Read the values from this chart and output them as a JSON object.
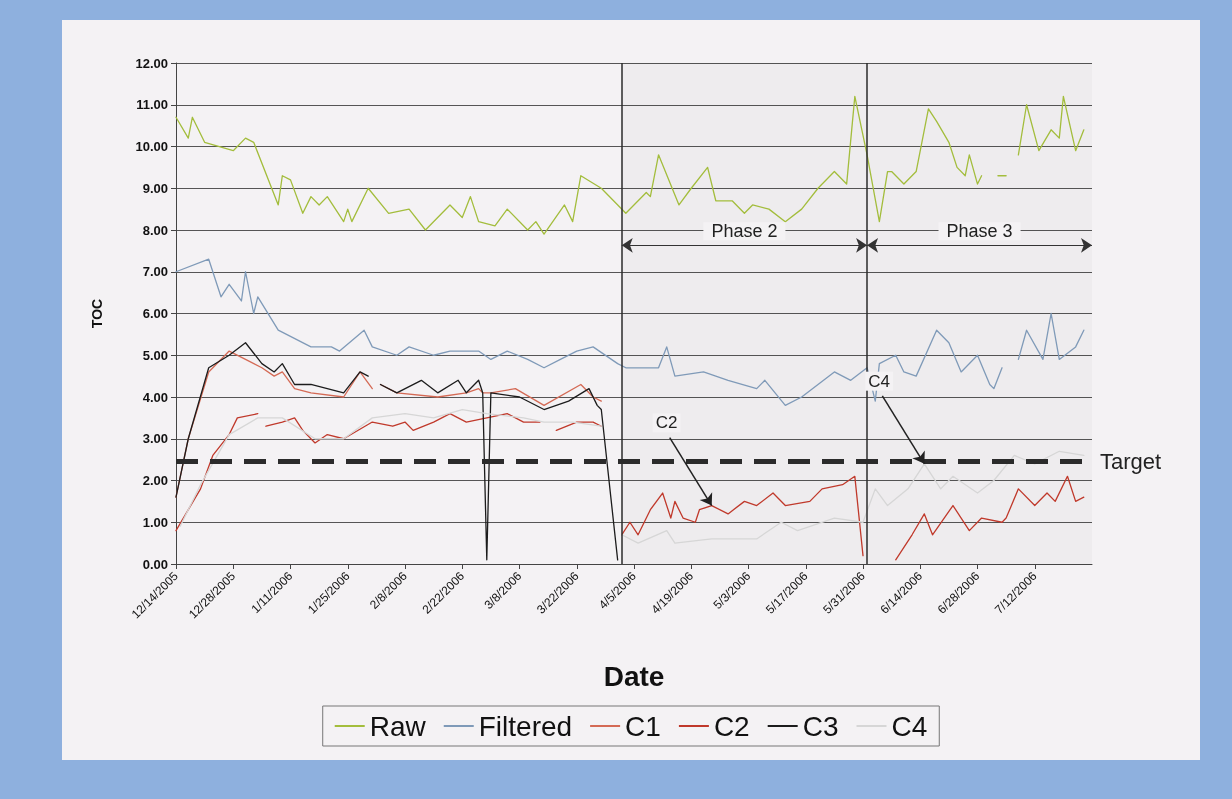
{
  "chart_data": {
    "type": "line",
    "xlabel": "Date",
    "ylabel": "TOC",
    "xlim": [
      "2005-12-14",
      "2006-07-26"
    ],
    "xticks": [
      {
        "value": "2005-12-14",
        "label": "12/14/2005"
      },
      {
        "value": "2005-12-28",
        "label": "12/28/2005"
      },
      {
        "value": "2006-01-11",
        "label": "1/11/2006"
      },
      {
        "value": "2006-01-25",
        "label": "1/25/2006"
      },
      {
        "value": "2006-02-08",
        "label": "2/8/2006"
      },
      {
        "value": "2006-02-22",
        "label": "2/22/2006"
      },
      {
        "value": "2006-03-08",
        "label": "3/8/2006"
      },
      {
        "value": "2006-03-22",
        "label": "3/22/2006"
      },
      {
        "value": "2006-04-05",
        "label": "4/5/2006"
      },
      {
        "value": "2006-04-19",
        "label": "4/19/2006"
      },
      {
        "value": "2006-05-03",
        "label": "5/3/2006"
      },
      {
        "value": "2006-05-17",
        "label": "5/17/2006"
      },
      {
        "value": "2006-05-31",
        "label": "5/31/2006"
      },
      {
        "value": "2006-06-14",
        "label": "6/14/2006"
      },
      {
        "value": "2006-06-28",
        "label": "6/28/2006"
      },
      {
        "value": "2006-07-12",
        "label": "7/12/2006"
      }
    ],
    "ylim": [
      0,
      12
    ],
    "yticks": [
      {
        "value": 0,
        "label": "0.00"
      },
      {
        "value": 1,
        "label": "1.00"
      },
      {
        "value": 2,
        "label": "2.00"
      },
      {
        "value": 3,
        "label": "3.00"
      },
      {
        "value": 4,
        "label": "4.00"
      },
      {
        "value": 5,
        "label": "5.00"
      },
      {
        "value": 6,
        "label": "6.00"
      },
      {
        "value": 7,
        "label": "7.00"
      },
      {
        "value": 8,
        "label": "8.00"
      },
      {
        "value": 9,
        "label": "9.00"
      },
      {
        "value": 10,
        "label": "10.00"
      },
      {
        "value": 11,
        "label": "11.00"
      },
      {
        "value": 12,
        "label": "12.00"
      }
    ],
    "grid": "y",
    "legend": "bottom",
    "series": [
      {
        "name": "Raw",
        "color": "#a3bd3c",
        "x": [
          "2005-12-14",
          "2005-12-17",
          "2005-12-18",
          "2005-12-21",
          "2005-12-28",
          "2005-12-31",
          "2006-01-02",
          "2006-01-08",
          "2006-01-09",
          "2006-01-11",
          "2006-01-14",
          "2006-01-16",
          "2006-01-18",
          "2006-01-20",
          "2006-01-24",
          "2006-01-25",
          "2006-01-26",
          "2006-01-30",
          "2006-02-04",
          "2006-02-09",
          "2006-02-13",
          "2006-02-19",
          "2006-02-22",
          "2006-02-24",
          "2006-02-26",
          "2006-03-02",
          "2006-03-05",
          "2006-03-10",
          "2006-03-12",
          "2006-03-14",
          "2006-03-19",
          "2006-03-21",
          "2006-03-23",
          "2006-03-28",
          "2006-04-03",
          "2006-04-08",
          "2006-04-09",
          "2006-04-11",
          "2006-04-16",
          "2006-04-19",
          "2006-04-23",
          "2006-04-25",
          "2006-04-29",
          "2006-05-02",
          "2006-05-04",
          "2006-05-08",
          "2006-05-12",
          "2006-05-16",
          "2006-05-20",
          "2006-05-24",
          "2006-05-27",
          "2006-05-29",
          "2006-06-01",
          "2006-06-04",
          "2006-06-06",
          "2006-06-07",
          "2006-06-10",
          "2006-06-13",
          "2006-06-16",
          "2006-06-18",
          "2006-06-21",
          "2006-06-23",
          "2006-06-25",
          "2006-06-26",
          "2006-06-28",
          "2006-06-29",
          "2006-07-01",
          "2006-07-03",
          "2006-07-05",
          "2006-07-06",
          "2006-07-08",
          "2006-07-10",
          "2006-07-13",
          "2006-07-16",
          "2006-07-18",
          "2006-07-19",
          "2006-07-22",
          "2006-07-24"
        ],
        "values": [
          10.7,
          10.2,
          10.7,
          10.1,
          9.9,
          10.2,
          10.1,
          8.6,
          9.3,
          9.2,
          8.4,
          8.8,
          8.6,
          8.8,
          8.2,
          8.5,
          8.2,
          9.0,
          8.4,
          8.5,
          8.0,
          8.6,
          8.3,
          8.8,
          8.2,
          8.1,
          8.5,
          8.0,
          8.2,
          7.9,
          8.6,
          8.2,
          9.3,
          9.0,
          8.4,
          8.9,
          8.8,
          9.8,
          8.6,
          9.0,
          9.5,
          8.7,
          8.7,
          8.4,
          8.6,
          8.5,
          8.2,
          8.5,
          9.0,
          9.4,
          9.1,
          11.2,
          9.8,
          8.2,
          9.4,
          9.4,
          9.1,
          9.4,
          10.9,
          10.6,
          10.1,
          9.5,
          9.3,
          9.8,
          9.1,
          9.3,
          null,
          9.3,
          9.3,
          null,
          9.8,
          11.0,
          9.9,
          10.4,
          10.2,
          11.2,
          9.9,
          10.4
        ]
      },
      {
        "name": "Filtered",
        "color": "#7f9ab8",
        "x": [
          "2005-12-14",
          "2005-12-22",
          "2005-12-25",
          "2005-12-27",
          "2005-12-30",
          "2005-12-31",
          "2006-01-02",
          "2006-01-03",
          "2006-01-08",
          "2006-01-16",
          "2006-01-21",
          "2006-01-23",
          "2006-01-29",
          "2006-01-31",
          "2006-02-06",
          "2006-02-09",
          "2006-02-15",
          "2006-02-19",
          "2006-02-26",
          "2006-03-01",
          "2006-03-05",
          "2006-03-10",
          "2006-03-14",
          "2006-03-18",
          "2006-03-22",
          "2006-03-26",
          "2006-04-01",
          "2006-04-03",
          "2006-04-11",
          "2006-04-13",
          "2006-04-15",
          "2006-04-22",
          "2006-04-28",
          "2006-05-05",
          "2006-05-07",
          "2006-05-12",
          "2006-05-16",
          "2006-05-24",
          "2006-05-28",
          "2006-06-01",
          "2006-06-03",
          "2006-06-04",
          "2006-06-08",
          "2006-06-10",
          "2006-06-13",
          "2006-06-18",
          "2006-06-21",
          "2006-06-24",
          "2006-06-28",
          "2006-07-01",
          "2006-07-02",
          "2006-07-04",
          "2006-07-06",
          "2006-07-08",
          "2006-07-10",
          "2006-07-14",
          "2006-07-16",
          "2006-07-18",
          "2006-07-22",
          "2006-07-24"
        ],
        "values": [
          7.0,
          7.3,
          6.4,
          6.7,
          6.3,
          7.0,
          6.0,
          6.4,
          5.6,
          5.2,
          5.2,
          5.1,
          5.6,
          5.2,
          5.0,
          5.2,
          5.0,
          5.1,
          5.1,
          4.9,
          5.1,
          4.9,
          4.7,
          4.9,
          5.1,
          5.2,
          4.8,
          4.7,
          4.7,
          5.2,
          4.5,
          4.6,
          4.4,
          4.2,
          4.4,
          3.8,
          4.0,
          4.6,
          4.4,
          4.7,
          3.9,
          4.8,
          5.0,
          4.6,
          4.5,
          5.6,
          5.3,
          4.6,
          5.0,
          4.3,
          4.2,
          4.7,
          null,
          4.9,
          5.6,
          4.9,
          6.0,
          4.9,
          5.2,
          5.6
        ]
      },
      {
        "name": "C1",
        "color": "#d46a55",
        "x": [
          "2005-12-14",
          "2005-12-17",
          "2005-12-22",
          "2005-12-27",
          "2005-12-31",
          "2006-01-04",
          "2006-01-07",
          "2006-01-09",
          "2006-01-12",
          "2006-01-16",
          "2006-01-24",
          "2006-01-28",
          "2006-01-31",
          "2006-02-01",
          "2006-02-02",
          "2006-02-06",
          "2006-02-16",
          "2006-02-23",
          "2006-02-26",
          "2006-02-27",
          "2006-03-01",
          "2006-03-07",
          "2006-03-14",
          "2006-03-23",
          "2006-03-26",
          "2006-03-28"
        ],
        "values": [
          1.6,
          3.0,
          4.6,
          5.1,
          4.9,
          4.7,
          4.5,
          4.6,
          4.2,
          4.1,
          4.0,
          4.6,
          4.2,
          null,
          4.3,
          4.1,
          4.0,
          4.1,
          4.2,
          4.1,
          4.1,
          4.2,
          3.8,
          4.3,
          4.0,
          3.9
        ]
      },
      {
        "name": "C2",
        "color": "#c0392b",
        "x": [
          "2005-12-14",
          "2005-12-20",
          "2005-12-23",
          "2005-12-27",
          "2005-12-29",
          "2006-01-03",
          "2006-01-04",
          "2006-01-05",
          "2006-01-09",
          "2006-01-12",
          "2006-01-14",
          "2006-01-17",
          "2006-01-20",
          "2006-01-24",
          "2006-01-31",
          "2006-02-05",
          "2006-02-08",
          "2006-02-10",
          "2006-02-15",
          "2006-02-19",
          "2006-02-23",
          "2006-02-28",
          "2006-03-05",
          "2006-03-09",
          "2006-03-13",
          "2006-03-15",
          "2006-03-17",
          "2006-03-22",
          "2006-03-26",
          "2006-03-28",
          "2006-03-30",
          "2006-04-02",
          "2006-04-04",
          "2006-04-06",
          "2006-04-09",
          "2006-04-12",
          "2006-04-14",
          "2006-04-15",
          "2006-04-17",
          "2006-04-20",
          "2006-04-21",
          "2006-04-24",
          "2006-04-28",
          "2006-05-02",
          "2006-05-05",
          "2006-05-09",
          "2006-05-12",
          "2006-05-18",
          "2006-05-21",
          "2006-05-26",
          "2006-05-29",
          "2006-05-31",
          "2006-06-02",
          "2006-06-08",
          "2006-06-12",
          "2006-06-15",
          "2006-06-17",
          "2006-06-22",
          "2006-06-26",
          "2006-06-29",
          "2006-07-04",
          "2006-07-05",
          "2006-07-08",
          "2006-07-12",
          "2006-07-15",
          "2006-07-17",
          "2006-07-20",
          "2006-07-22",
          "2006-07-24"
        ],
        "values": [
          0.8,
          1.8,
          2.6,
          3.1,
          3.5,
          3.6,
          null,
          3.3,
          3.4,
          3.5,
          3.2,
          2.9,
          3.1,
          3.0,
          3.4,
          3.3,
          3.4,
          3.2,
          3.4,
          3.6,
          3.4,
          3.5,
          3.6,
          3.4,
          3.4,
          null,
          3.2,
          3.4,
          3.4,
          3.3,
          null,
          0.7,
          1.0,
          0.7,
          1.3,
          1.7,
          1.1,
          1.5,
          1.1,
          1.0,
          1.3,
          1.4,
          1.2,
          1.5,
          1.4,
          1.7,
          1.4,
          1.5,
          1.8,
          1.9,
          2.1,
          0.2,
          null,
          0.1,
          0.7,
          1.2,
          0.7,
          1.4,
          0.8,
          1.1,
          1.0,
          1.1,
          1.8,
          1.4,
          1.7,
          1.5,
          2.1,
          1.5,
          1.6
        ]
      },
      {
        "name": "C3",
        "color": "#1c1c1c",
        "x": [
          "2005-12-14",
          "2005-12-17",
          "2005-12-22",
          "2005-12-27",
          "2005-12-31",
          "2006-01-04",
          "2006-01-07",
          "2006-01-09",
          "2006-01-12",
          "2006-01-16",
          "2006-01-24",
          "2006-01-28",
          "2006-01-30",
          "2006-01-31",
          "2006-02-02",
          "2006-02-06",
          "2006-02-12",
          "2006-02-16",
          "2006-02-21",
          "2006-02-23",
          "2006-02-26",
          "2006-02-27",
          "2006-02-28",
          "2006-03-01",
          "2006-03-08",
          "2006-03-14",
          "2006-03-20",
          "2006-03-25",
          "2006-03-27",
          "2006-03-28",
          "2006-04-01"
        ],
        "values": [
          1.6,
          3.0,
          4.7,
          5.0,
          5.3,
          4.8,
          4.6,
          4.8,
          4.3,
          4.3,
          4.1,
          4.6,
          4.5,
          null,
          4.3,
          4.1,
          4.4,
          4.1,
          4.4,
          4.1,
          4.4,
          4.1,
          0.1,
          4.1,
          4.0,
          3.7,
          3.9,
          4.2,
          3.8,
          3.7,
          0.1
        ]
      },
      {
        "name": "C4",
        "color": "#d6d6d6",
        "x": [
          "2005-12-15",
          "2005-12-20",
          "2005-12-27",
          "2006-01-03",
          "2006-01-09",
          "2006-01-17",
          "2006-01-24",
          "2006-01-31",
          "2006-02-08",
          "2006-02-15",
          "2006-02-22",
          "2006-02-28",
          "2006-03-09",
          "2006-03-14",
          "2006-03-21",
          "2006-03-28",
          "2006-03-30",
          "2006-04-02",
          "2006-04-06",
          "2006-04-13",
          "2006-04-15",
          "2006-04-24",
          "2006-05-05",
          "2006-05-11",
          "2006-05-15",
          "2006-05-24",
          "2006-05-31",
          "2006-06-03",
          "2006-06-06",
          "2006-06-11",
          "2006-06-15",
          "2006-06-19",
          "2006-06-22",
          "2006-06-28",
          "2006-07-02",
          "2006-07-07",
          "2006-07-12",
          "2006-07-18",
          "2006-07-24"
        ],
        "values": [
          0.9,
          1.9,
          3.1,
          3.5,
          3.5,
          3.0,
          3.0,
          3.5,
          3.6,
          3.5,
          3.7,
          3.6,
          3.5,
          3.4,
          3.4,
          3.3,
          null,
          0.7,
          0.5,
          0.8,
          0.5,
          0.6,
          0.6,
          1.0,
          0.8,
          1.1,
          1.0,
          1.8,
          1.4,
          1.8,
          2.4,
          1.8,
          2.1,
          1.7,
          2.0,
          2.6,
          2.4,
          2.7,
          2.6
        ]
      }
    ],
    "ref_lines": [
      {
        "axis": "y",
        "value": 2.45,
        "label": "Target",
        "color": "#2b2b2b",
        "line_style": "dashed"
      },
      {
        "axis": "x",
        "value": "2006-04-02",
        "label": null,
        "color": "#2b2b2b"
      },
      {
        "axis": "x",
        "value": "2006-06-01",
        "label": null,
        "color": "#2b2b2b"
      }
    ],
    "bands": [
      {
        "axis": "x",
        "from": "2006-04-02",
        "to": "2006-06-01",
        "label": "Phase 2"
      },
      {
        "axis": "x",
        "from": "2006-06-01",
        "to": "2006-07-26",
        "label": "Phase 3"
      }
    ],
    "annotations": [
      {
        "text": "C2",
        "x": "2006-04-24",
        "y": 1.4
      },
      {
        "text": "C4",
        "x": "2006-06-15",
        "y": 2.4
      }
    ]
  }
}
